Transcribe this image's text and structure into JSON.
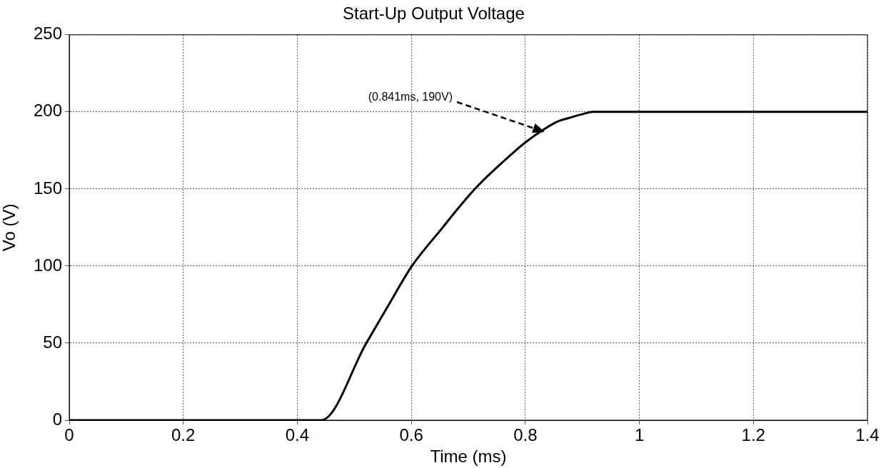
{
  "chart_data": {
    "type": "line",
    "title": "Start-Up Output Voltage",
    "xlabel": "Time (ms)",
    "ylabel": "Vo (V)",
    "x": [
      0,
      0.442,
      0.521,
      0.559,
      0.601,
      0.655,
      0.68,
      0.709,
      0.73,
      0.759,
      0.78,
      0.801,
      0.834,
      0.855,
      0.876,
      0.9,
      0.918,
      0.943,
      0.976,
      1.4
    ],
    "series": [
      {
        "color": "#000000",
        "values": [
          0,
          0,
          50,
          74,
          100,
          125,
          136.5,
          149,
          157,
          167,
          174,
          180.5,
          189,
          193.5,
          196,
          198.5,
          200,
          200,
          200,
          200
        ]
      }
    ],
    "xlim": [
      0,
      1.4
    ],
    "xticks": [
      0,
      0.2,
      0.4,
      0.6,
      0.8,
      1,
      1.2,
      1.4
    ],
    "ylim": [
      0,
      250
    ],
    "yticks": [
      0,
      50,
      100,
      150,
      200,
      250
    ],
    "grid": true,
    "legend": false,
    "marker": "none",
    "line_style": "solid",
    "annotations": [
      "(0.841ms, 190V)"
    ]
  }
}
